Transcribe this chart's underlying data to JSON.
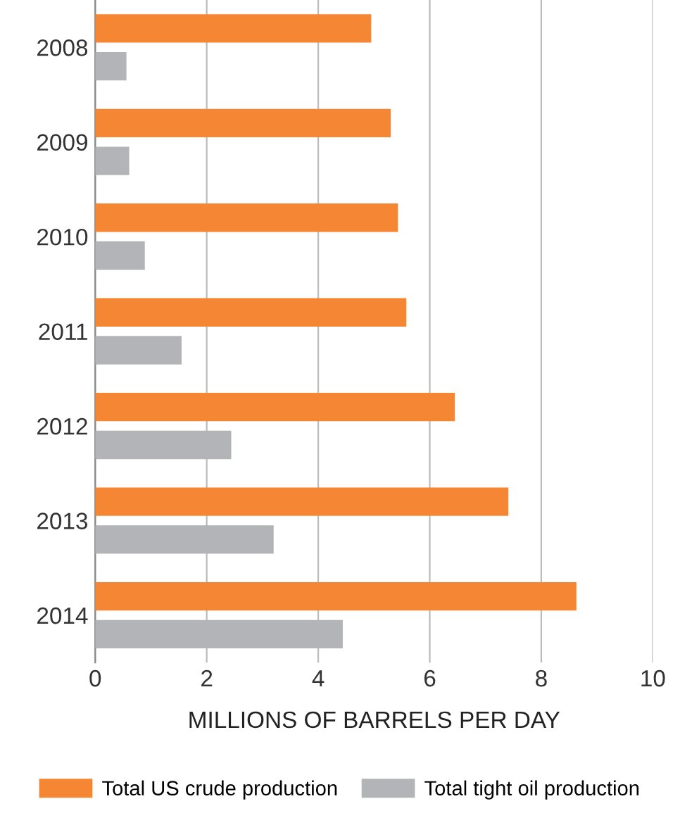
{
  "chart_data": {
    "type": "bar",
    "orientation": "horizontal",
    "xlabel": "MILLIONS OF BARRELS PER DAY",
    "categories": [
      "2008",
      "2009",
      "2010",
      "2011",
      "2012",
      "2013",
      "2014"
    ],
    "series": [
      {
        "name": "Total US crude production",
        "color": "#f58634",
        "values": [
          4.95,
          5.3,
          5.43,
          5.58,
          6.45,
          7.41,
          8.63
        ]
      },
      {
        "name": "Total tight oil production",
        "color": "#b2b4b7",
        "values": [
          0.56,
          0.61,
          0.89,
          1.55,
          2.44,
          3.2,
          4.44
        ]
      }
    ],
    "xlim": [
      0,
      10
    ],
    "xticks": [
      0,
      2,
      4,
      6,
      8,
      10
    ],
    "grid": "x",
    "legend": "bottom"
  }
}
